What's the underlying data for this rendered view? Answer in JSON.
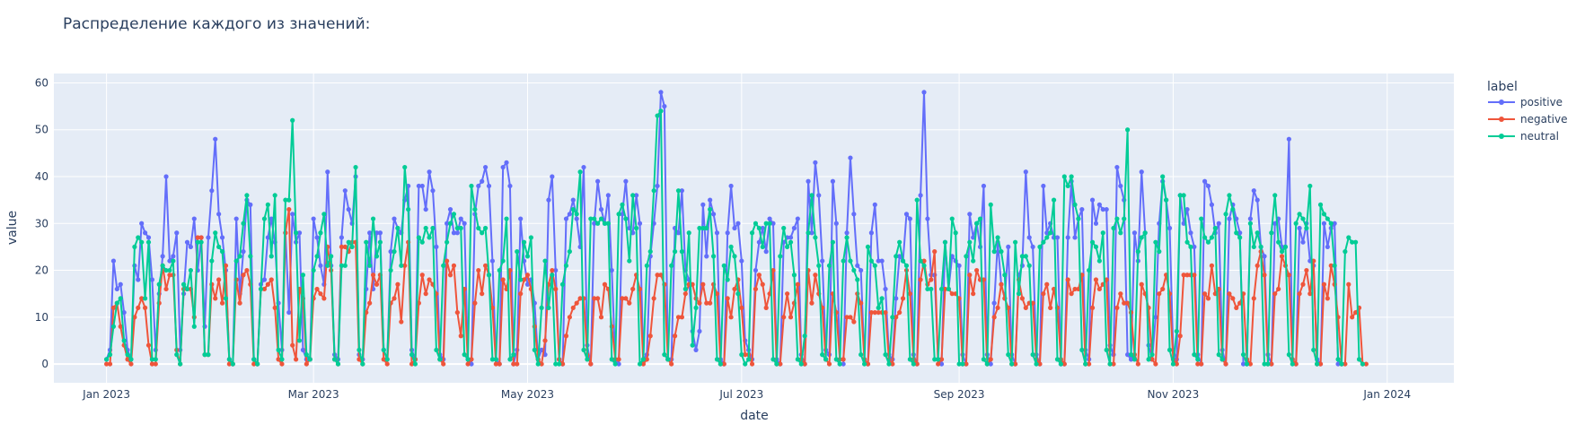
{
  "chart_data": {
    "type": "line",
    "title": "Распределение каждого из значений:",
    "xlabel": "date",
    "ylabel": "value",
    "x_range": [
      "2022-12-17",
      "2024-01-20"
    ],
    "ylim": [
      -4,
      62
    ],
    "x_ticks": [
      {
        "date": "2023-01-01",
        "label": "Jan 2023"
      },
      {
        "date": "2023-03-01",
        "label": "Mar 2023"
      },
      {
        "date": "2023-05-01",
        "label": "May 2023"
      },
      {
        "date": "2023-07-01",
        "label": "Jul 2023"
      },
      {
        "date": "2023-09-01",
        "label": "Sep 2023"
      },
      {
        "date": "2023-11-01",
        "label": "Nov 2023"
      },
      {
        "date": "2024-01-01",
        "label": "Jan 2024"
      }
    ],
    "y_ticks": [
      0,
      10,
      20,
      30,
      40,
      50,
      60
    ],
    "grid": true,
    "legend": {
      "title": "label",
      "placement": "right"
    },
    "x_start": "2023-01-01",
    "x_end": "2023-12-31",
    "series": [
      {
        "name": "positive",
        "color": "#636efa",
        "values": [
          1,
          3,
          22,
          16,
          17,
          11,
          3,
          1,
          21,
          18,
          30,
          28,
          27,
          18,
          3,
          15,
          23,
          40,
          22,
          23,
          28,
          3,
          15,
          26,
          25,
          31,
          20,
          27,
          8,
          27,
          37,
          48,
          32,
          27,
          20,
          1,
          0,
          31,
          15,
          24,
          35,
          34,
          1,
          0,
          17,
          18,
          27,
          31,
          26,
          13,
          3,
          28,
          11,
          32,
          26,
          28,
          3,
          1,
          1,
          31,
          27,
          21,
          17,
          41,
          21,
          2,
          1,
          27,
          37,
          33,
          30,
          40,
          2,
          1,
          16,
          28,
          16,
          28,
          28,
          3,
          1,
          24,
          31,
          29,
          28,
          35,
          38,
          3,
          1,
          38,
          38,
          33,
          41,
          37,
          25,
          2,
          1,
          30,
          33,
          28,
          28,
          31,
          30,
          1,
          0,
          32,
          38,
          39,
          42,
          38,
          22,
          1,
          0,
          42,
          43,
          38,
          0,
          3,
          31,
          22,
          17,
          18,
          13,
          1,
          3,
          2,
          35,
          40,
          20,
          1,
          0,
          31,
          32,
          35,
          31,
          25,
          42,
          4,
          0,
          30,
          39,
          33,
          30,
          36,
          20,
          1,
          0,
          32,
          39,
          29,
          28,
          36,
          30,
          1,
          2,
          23,
          30,
          38,
          58,
          55,
          1,
          1,
          29,
          28,
          37,
          20,
          18,
          7,
          3,
          7,
          34,
          23,
          35,
          32,
          28,
          1,
          0,
          28,
          38,
          29,
          30,
          22,
          5,
          3,
          1,
          20,
          26,
          29,
          24,
          31,
          30,
          1,
          0,
          26,
          27,
          27,
          29,
          31,
          2,
          0,
          39,
          28,
          43,
          36,
          22,
          3,
          2,
          39,
          30,
          0,
          0,
          28,
          44,
          32,
          21,
          20,
          1,
          0,
          28,
          34,
          22,
          22,
          16,
          2,
          1,
          14,
          23,
          22,
          32,
          31,
          2,
          0,
          36,
          58,
          31,
          19,
          19,
          1,
          0,
          26,
          16,
          23,
          22,
          21,
          2,
          0,
          32,
          27,
          30,
          25,
          38,
          2,
          0,
          13,
          26,
          17,
          14,
          25,
          2,
          0,
          19,
          21,
          41,
          27,
          25,
          2,
          0,
          38,
          28,
          30,
          27,
          27,
          0,
          0,
          27,
          39,
          27,
          31,
          33,
          3,
          1,
          35,
          30,
          34,
          33,
          33,
          4,
          2,
          42,
          38,
          35,
          2,
          1,
          28,
          22,
          41,
          28,
          4,
          1,
          10,
          30,
          39,
          35,
          29,
          3,
          1,
          36,
          30,
          33,
          28,
          25,
          2,
          0,
          39,
          38,
          34,
          28,
          30,
          3,
          0,
          31,
          34,
          31,
          28,
          0,
          0,
          31,
          37,
          35,
          25,
          23,
          2,
          0,
          30,
          31,
          25,
          25,
          48,
          1,
          0,
          29,
          26,
          30,
          22,
          21,
          1,
          0,
          30,
          25,
          29,
          30,
          0,
          0
        ]
      },
      {
        "name": "negative",
        "color": "#ef553b",
        "values": [
          0,
          0,
          12,
          13,
          8,
          4,
          1,
          0,
          10,
          12,
          14,
          12,
          4,
          0,
          0,
          13,
          21,
          16,
          19,
          19,
          3,
          0,
          16,
          16,
          16,
          10,
          27,
          27,
          2,
          2,
          17,
          14,
          18,
          13,
          21,
          0,
          0,
          18,
          13,
          19,
          20,
          17,
          0,
          0,
          16,
          16,
          17,
          18,
          12,
          1,
          0,
          28,
          33,
          4,
          1,
          16,
          14,
          0,
          1,
          14,
          16,
          15,
          14,
          25,
          20,
          1,
          0,
          25,
          25,
          24,
          26,
          26,
          1,
          0,
          11,
          13,
          19,
          17,
          19,
          1,
          0,
          13,
          14,
          17,
          9,
          21,
          26,
          0,
          1,
          13,
          19,
          15,
          18,
          17,
          15,
          1,
          0,
          22,
          19,
          21,
          11,
          6,
          16,
          0,
          1,
          13,
          20,
          15,
          21,
          19,
          12,
          0,
          0,
          18,
          16,
          20,
          0,
          0,
          15,
          18,
          19,
          16,
          8,
          1,
          0,
          5,
          17,
          20,
          16,
          1,
          0,
          6,
          10,
          12,
          13,
          14,
          14,
          2,
          0,
          14,
          14,
          10,
          17,
          16,
          8,
          1,
          1,
          14,
          14,
          13,
          16,
          19,
          16,
          0,
          1,
          6,
          14,
          19,
          19,
          17,
          1,
          0,
          6,
          10,
          10,
          15,
          17,
          17,
          14,
          13,
          17,
          13,
          13,
          17,
          15,
          0,
          0,
          14,
          10,
          16,
          18,
          12,
          2,
          2,
          0,
          16,
          19,
          17,
          12,
          15,
          20,
          0,
          0,
          10,
          15,
          10,
          13,
          17,
          1,
          0,
          20,
          13,
          19,
          15,
          12,
          1,
          0,
          15,
          11,
          1,
          1,
          10,
          10,
          9,
          15,
          13,
          1,
          0,
          11,
          11,
          11,
          11,
          11,
          1,
          0,
          10,
          11,
          14,
          20,
          15,
          1,
          0,
          18,
          22,
          17,
          18,
          24,
          0,
          1,
          16,
          16,
          15,
          15,
          14,
          0,
          0,
          19,
          15,
          20,
          18,
          18,
          0,
          1,
          10,
          12,
          17,
          14,
          12,
          0,
          0,
          18,
          14,
          12,
          13,
          13,
          1,
          0,
          15,
          17,
          12,
          16,
          12,
          1,
          0,
          18,
          15,
          16,
          16,
          19,
          0,
          0,
          12,
          18,
          16,
          17,
          18,
          0,
          0,
          12,
          15,
          13,
          13,
          11,
          2,
          0,
          17,
          15,
          12,
          1,
          0,
          15,
          16,
          19,
          15,
          1,
          0,
          6,
          19,
          19,
          19,
          19,
          0,
          0,
          15,
          14,
          21,
          15,
          16,
          1,
          0,
          15,
          14,
          12,
          13,
          15,
          1,
          0,
          14,
          21,
          24,
          19,
          0,
          0,
          15,
          16,
          23,
          21,
          19,
          1,
          0,
          15,
          17,
          20,
          15,
          22,
          0,
          0,
          17,
          14,
          21,
          17,
          10,
          0,
          0,
          17,
          10,
          11,
          12,
          0,
          0
        ]
      },
      {
        "name": "neutral",
        "color": "#00cc96",
        "values": [
          1,
          2,
          8,
          13,
          14,
          5,
          2,
          1,
          25,
          27,
          26,
          14,
          26,
          1,
          1,
          17,
          21,
          20,
          20,
          22,
          2,
          0,
          17,
          16,
          20,
          8,
          26,
          26,
          2,
          2,
          22,
          28,
          25,
          24,
          14,
          1,
          0,
          22,
          23,
          30,
          36,
          23,
          1,
          0,
          16,
          31,
          34,
          23,
          36,
          3,
          1,
          35,
          35,
          52,
          28,
          5,
          19,
          2,
          1,
          20,
          23,
          28,
          32,
          21,
          23,
          1,
          0,
          21,
          21,
          26,
          25,
          42,
          3,
          0,
          26,
          21,
          31,
          23,
          26,
          3,
          1,
          20,
          24,
          29,
          21,
          42,
          33,
          2,
          0,
          27,
          26,
          29,
          27,
          29,
          3,
          1,
          21,
          26,
          30,
          32,
          29,
          29,
          2,
          1,
          38,
          33,
          29,
          28,
          29,
          19,
          1,
          1,
          20,
          22,
          31,
          1,
          2,
          24,
          18,
          26,
          23,
          27,
          3,
          0,
          12,
          22,
          12,
          19,
          0,
          0,
          17,
          21,
          24,
          33,
          32,
          41,
          3,
          1,
          31,
          31,
          30,
          31,
          30,
          30,
          1,
          0,
          32,
          34,
          31,
          22,
          36,
          29,
          0,
          1,
          21,
          24,
          37,
          53,
          54,
          2,
          1,
          21,
          24,
          37,
          24,
          16,
          28,
          4,
          12,
          29,
          29,
          29,
          33,
          23,
          1,
          0,
          21,
          18,
          25,
          23,
          15,
          2,
          0,
          1,
          28,
          30,
          29,
          25,
          30,
          30,
          1,
          0,
          23,
          29,
          25,
          26,
          19,
          1,
          0,
          6,
          28,
          36,
          27,
          21,
          2,
          1,
          21,
          26,
          1,
          0,
          22,
          27,
          22,
          20,
          18,
          2,
          0,
          25,
          22,
          21,
          12,
          14,
          2,
          0,
          10,
          23,
          26,
          22,
          21,
          1,
          0,
          35,
          22,
          21,
          16,
          16,
          1,
          1,
          16,
          26,
          16,
          31,
          28,
          0,
          0,
          23,
          26,
          22,
          30,
          31,
          1,
          0,
          34,
          24,
          27,
          24,
          19,
          2,
          0,
          26,
          15,
          23,
          23,
          21,
          2,
          0,
          25,
          26,
          27,
          28,
          35,
          1,
          0,
          40,
          38,
          40,
          34,
          31,
          3,
          0,
          20,
          26,
          25,
          22,
          28,
          3,
          0,
          29,
          31,
          28,
          31,
          50,
          2,
          1,
          24,
          27,
          28,
          1,
          2,
          26,
          24,
          40,
          35,
          3,
          0,
          7,
          36,
          36,
          26,
          25,
          2,
          1,
          31,
          27,
          26,
          27,
          29,
          2,
          1,
          32,
          36,
          33,
          28,
          27,
          2,
          0,
          30,
          25,
          28,
          25,
          0,
          0,
          28,
          36,
          26,
          24,
          25,
          2,
          0,
          30,
          32,
          31,
          29,
          38,
          3,
          0,
          34,
          32,
          31,
          30,
          21,
          1,
          0,
          24,
          27,
          26,
          26,
          1,
          0
        ]
      }
    ]
  }
}
